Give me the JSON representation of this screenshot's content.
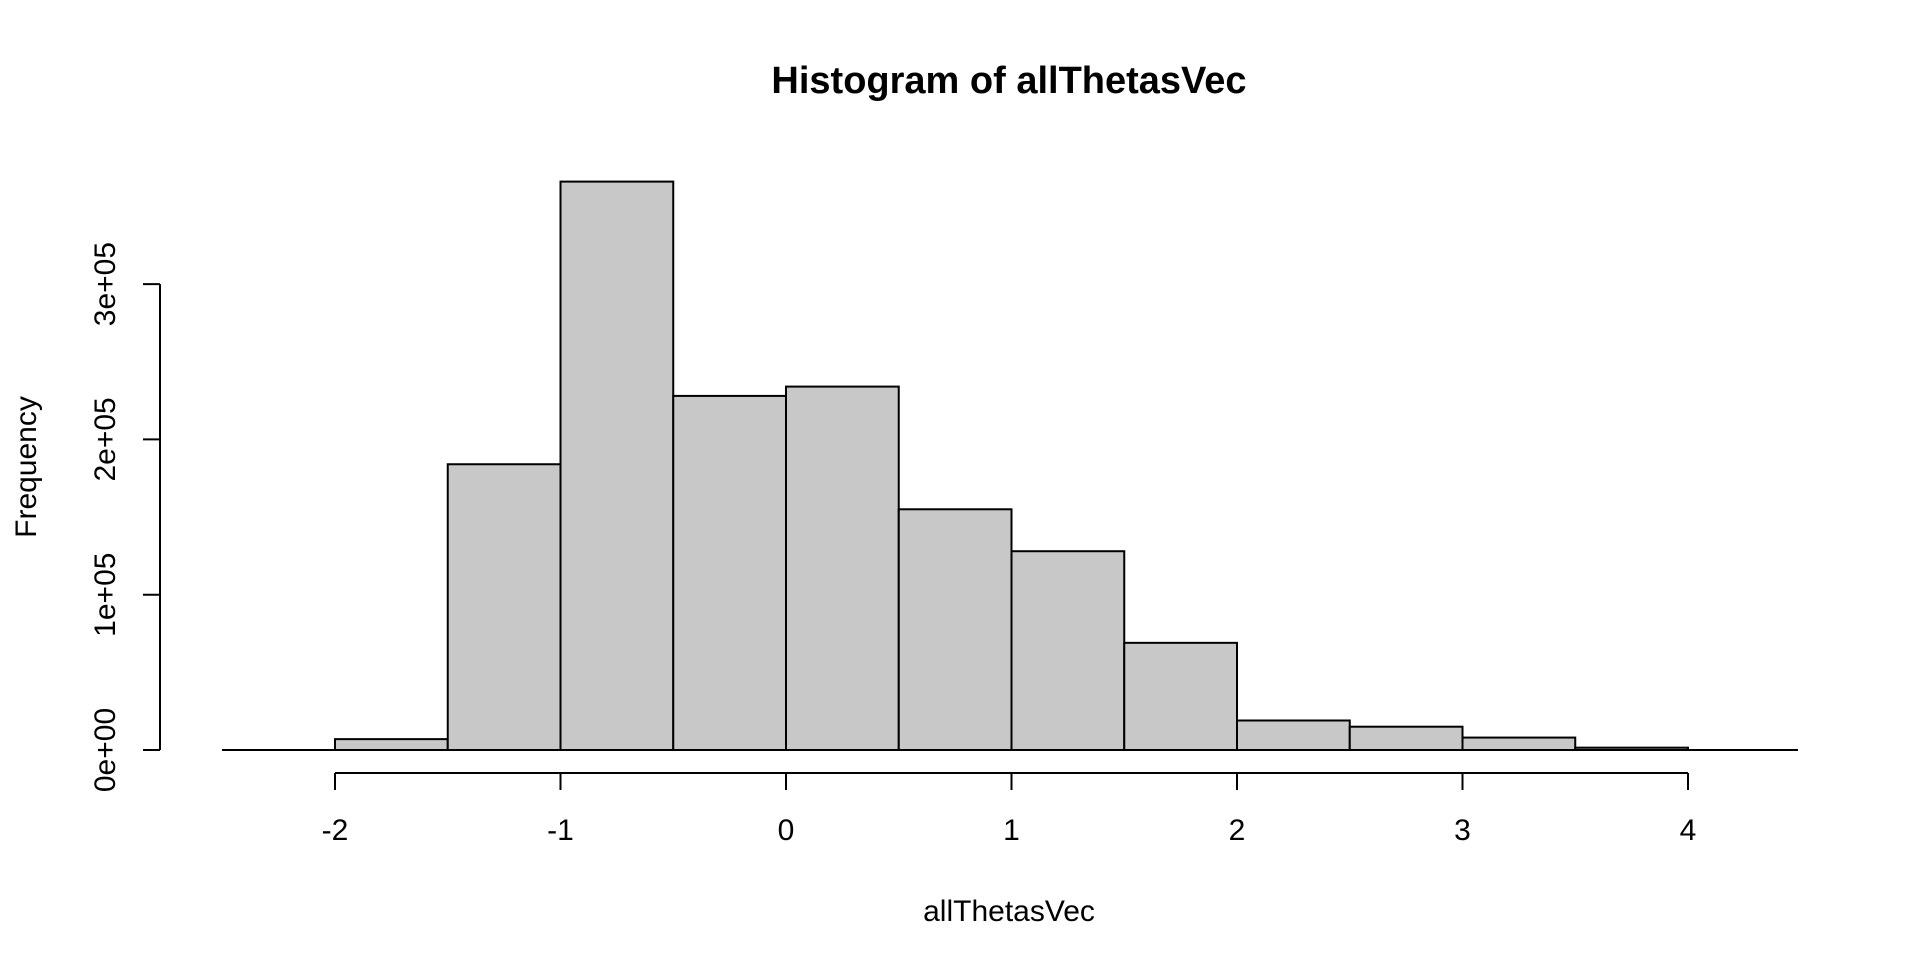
{
  "chart_data": {
    "type": "bar",
    "title": "Histogram of allThetasVec",
    "xlabel": "allThetasVec",
    "ylabel": "Frequency",
    "bar_color": "#c8c8c8",
    "edge_color": "#000000",
    "bins": [
      {
        "x0": -2.0,
        "x1": -1.5,
        "count": 7000
      },
      {
        "x0": -1.5,
        "x1": -1.0,
        "count": 184000
      },
      {
        "x0": -1.0,
        "x1": -0.5,
        "count": 366000
      },
      {
        "x0": -0.5,
        "x1": 0.0,
        "count": 228000
      },
      {
        "x0": 0.0,
        "x1": 0.5,
        "count": 234000
      },
      {
        "x0": 0.5,
        "x1": 1.0,
        "count": 155000
      },
      {
        "x0": 1.0,
        "x1": 1.5,
        "count": 128000
      },
      {
        "x0": 1.5,
        "x1": 2.0,
        "count": 69000
      },
      {
        "x0": 2.0,
        "x1": 2.5,
        "count": 19000
      },
      {
        "x0": 2.5,
        "x1": 3.0,
        "count": 15000
      },
      {
        "x0": 3.0,
        "x1": 3.5,
        "count": 8000
      },
      {
        "x0": 3.5,
        "x1": 4.0,
        "count": 1500
      }
    ],
    "xlim": [
      -2.5,
      4.5
    ],
    "ylim": [
      0,
      366000
    ],
    "x_ticks": [
      {
        "value": -2,
        "label": "-2"
      },
      {
        "value": -1,
        "label": "-1"
      },
      {
        "value": 0,
        "label": "0"
      },
      {
        "value": 1,
        "label": "1"
      },
      {
        "value": 2,
        "label": "2"
      },
      {
        "value": 3,
        "label": "3"
      },
      {
        "value": 4,
        "label": "4"
      }
    ],
    "y_ticks": [
      {
        "value": 0,
        "label": "0e+00"
      },
      {
        "value": 100000,
        "label": "1e+05"
      },
      {
        "value": 200000,
        "label": "2e+05"
      },
      {
        "value": 300000,
        "label": "3e+05"
      }
    ]
  }
}
